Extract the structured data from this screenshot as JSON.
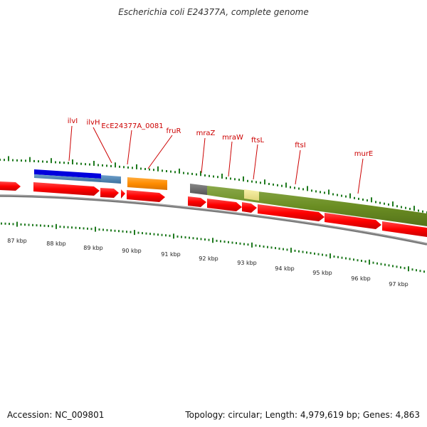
{
  "title": "Escherichia coli E24377A, complete genome",
  "footer": {
    "accession_label": "Accession: NC_009801",
    "summary_label": "Topology: circular; Length: 4,979,619 bp; Genes: 4,863"
  },
  "scale": {
    "unit": "kbp",
    "labels": [
      "87 kbp",
      "88 kbp",
      "89 kbp",
      "90 kbp",
      "91 kbp",
      "92 kbp",
      "93 kbp",
      "94 kbp",
      "95 kbp",
      "96 kbp",
      "97 kbp"
    ]
  },
  "gene_labels": [
    "ilvI",
    "ilvH",
    "EcE24377A_0081",
    "fruR",
    "mraZ",
    "mraW",
    "ftsL",
    "ftsI",
    "murE"
  ],
  "colors": {
    "cds": "#ff0000",
    "gene_label": "#cc0000",
    "tick": "#1f7a1f",
    "backbone": "#808080",
    "blue_feature": "#0000dd",
    "steel_feature": "#4682b4",
    "orange_feature": "#ff8c00",
    "olive_feature": "#6b8e23",
    "pale_yellow_feature": "#f0e68c",
    "gray_feature": "#666666"
  }
}
